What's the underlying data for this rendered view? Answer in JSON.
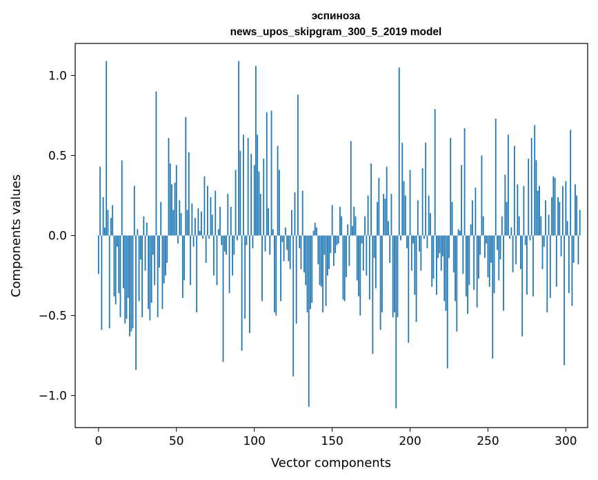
{
  "chart_data": {
    "type": "bar",
    "title_line1": "эспиноза",
    "title_line2": "news_upos_skipgram_300_5_2019 model",
    "xlabel": "Vector components",
    "ylabel": "Components values",
    "xlim": [
      -15,
      314
    ],
    "ylim": [
      -1.2,
      1.2
    ],
    "xticks": [
      0,
      50,
      100,
      150,
      200,
      250,
      300
    ],
    "xtick_labels": [
      "0",
      "50",
      "100",
      "150",
      "200",
      "250",
      "300"
    ],
    "yticks": [
      1.0,
      0.5,
      0.0,
      -0.5,
      -1.0
    ],
    "ytick_labels": [
      "1.0",
      "0.5",
      "0.0",
      "−0.5",
      "−1.0"
    ],
    "grid": false,
    "bar_color": "#1f77b4",
    "values": [
      -0.24,
      0.43,
      -0.59,
      0.24,
      0.05,
      1.09,
      0.16,
      -0.58,
      0.11,
      0.19,
      -0.38,
      -0.43,
      -0.07,
      -0.36,
      -0.51,
      0.47,
      -0.33,
      -0.55,
      -0.52,
      -0.39,
      -0.63,
      -0.6,
      -0.58,
      0.31,
      -0.84,
      0.04,
      -0.41,
      -0.15,
      -0.51,
      0.12,
      -0.22,
      0.08,
      -0.46,
      -0.53,
      -0.42,
      -0.12,
      -0.31,
      0.9,
      -0.51,
      -0.2,
      0.21,
      -0.46,
      -0.3,
      -0.25,
      -0.17,
      0.61,
      0.45,
      0.32,
      0.16,
      0.33,
      0.44,
      -0.05,
      0.22,
      0.14,
      -0.39,
      -0.28,
      0.74,
      0.16,
      0.52,
      -0.31,
      0.2,
      -0.07,
      0.11,
      -0.48,
      0.17,
      0.03,
      0.15,
      -0.02,
      0.37,
      -0.17,
      0.31,
      -0.02,
      0.24,
      0.13,
      -0.25,
      0.28,
      -0.31,
      0.04,
      0.18,
      -0.06,
      -0.79,
      -0.1,
      -0.12,
      0.26,
      -0.36,
      0.18,
      -0.25,
      -0.12,
      0.41,
      -0.03,
      1.09,
      0.53,
      -0.72,
      0.63,
      -0.52,
      -0.06,
      0.61,
      -0.61,
      0.51,
      -0.08,
      0.44,
      1.06,
      0.63,
      0.4,
      0.26,
      -0.41,
      0.48,
      -0.1,
      0.77,
      0.17,
      -0.12,
      0.78,
      0.04,
      -0.48,
      -0.5,
      0.56,
      0.41,
      -0.41,
      -0.04,
      -0.16,
      0.05,
      -0.09,
      -0.16,
      -0.21,
      0.16,
      -0.88,
      0.27,
      -0.55,
      0.88,
      -0.08,
      -0.21,
      0.28,
      -0.23,
      -0.31,
      -0.48,
      -1.07,
      -0.46,
      -0.42,
      0.03,
      0.08,
      0.05,
      -0.18,
      -0.31,
      -0.32,
      -0.48,
      -0.12,
      -0.44,
      -0.25,
      -0.21,
      -0.11,
      0.19,
      -0.19,
      -0.11,
      -0.06,
      -0.05,
      0.18,
      0.12,
      -0.4,
      -0.41,
      -0.26,
      0.07,
      -0.19,
      0.59,
      0.06,
      0.18,
      0.12,
      -0.28,
      -0.38,
      -0.5,
      -0.05,
      -0.22,
      0.12,
      -0.25,
      0.25,
      -0.4,
      0.45,
      -0.74,
      -0.14,
      -0.33,
      0.21,
      0.36,
      -0.59,
      -0.48,
      0.26,
      0.23,
      0.43,
      0.09,
      -0.17,
      0.26,
      -0.51,
      -0.48,
      -1.08,
      -0.51,
      1.05,
      -0.03,
      0.58,
      0.34,
      0.25,
      -0.08,
      -0.67,
      0.41,
      -0.22,
      -0.05,
      -0.37,
      -0.54,
      0.22,
      -0.1,
      -0.22,
      0.42,
      -0.02,
      0.58,
      -0.08,
      0.25,
      0.14,
      -0.32,
      -0.27,
      0.79,
      -0.37,
      -0.14,
      -0.11,
      -0.22,
      -0.13,
      -0.41,
      -0.47,
      -0.83,
      -0.14,
      0.61,
      0.21,
      -0.23,
      -0.41,
      -0.6,
      0.04,
      0.03,
      0.44,
      -0.24,
      0.67,
      -0.38,
      -0.49,
      -0.31,
      0.07,
      0.22,
      -0.34,
      0.3,
      -0.45,
      -0.27,
      -0.12,
      0.5,
      0.12,
      -0.14,
      -0.05,
      -0.26,
      -0.32,
      -0.17,
      -0.77,
      -0.36,
      0.73,
      -0.09,
      -0.28,
      -0.15,
      0.12,
      -0.47,
      0.38,
      0.21,
      0.63,
      -0.02,
      0.05,
      -0.23,
      0.56,
      -0.18,
      0.32,
      0.12,
      -0.21,
      -0.63,
      0.31,
      -0.06,
      -0.37,
      0.48,
      -0.03,
      0.61,
      -0.38,
      0.69,
      0.47,
      0.28,
      0.31,
      0.12,
      -0.21,
      -0.07,
      0.22,
      -0.48,
      0.13,
      -0.39,
      0.24,
      0.37,
      0.36,
      -0.32,
      0.24,
      0.21,
      -0.13,
      0.31,
      -0.81,
      0.34,
      0.09,
      -0.36,
      0.66,
      -0.44,
      -0.17,
      0.32,
      0.25,
      -0.18,
      0.16
    ]
  }
}
